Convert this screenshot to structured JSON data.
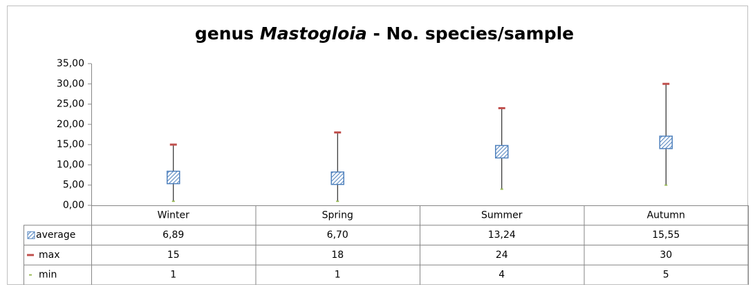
{
  "chart_data": {
    "type": "stock",
    "title": {
      "prefix": "genus",
      "taxon": "Mastogloia",
      "suffix": "- No. species/sample"
    },
    "categories": [
      "Winter",
      "Spring",
      "Summer",
      "Autumn"
    ],
    "series": [
      {
        "name": "average",
        "color": "#4f81bd",
        "values": [
          6.89,
          6.7,
          13.24,
          15.55
        ],
        "value_labels": [
          "6,89",
          "6,70",
          "13,24",
          "15,55"
        ]
      },
      {
        "name": "max",
        "color": "#c0504d",
        "values": [
          15,
          18,
          24,
          30
        ]
      },
      {
        "name": "min",
        "color": "#9bbb59",
        "values": [
          1,
          1,
          4,
          5
        ]
      }
    ],
    "ylim": [
      0,
      35
    ],
    "yticks": [
      {
        "value": 0,
        "label": "0,00"
      },
      {
        "value": 5,
        "label": "5,00"
      },
      {
        "value": 10,
        "label": "10,00"
      },
      {
        "value": 15,
        "label": "15,00"
      },
      {
        "value": 20,
        "label": "20,00"
      },
      {
        "value": 25,
        "label": "25,00"
      },
      {
        "value": 30,
        "label": "30,00"
      },
      {
        "value": 35,
        "label": "35,00"
      }
    ],
    "grid": false
  }
}
